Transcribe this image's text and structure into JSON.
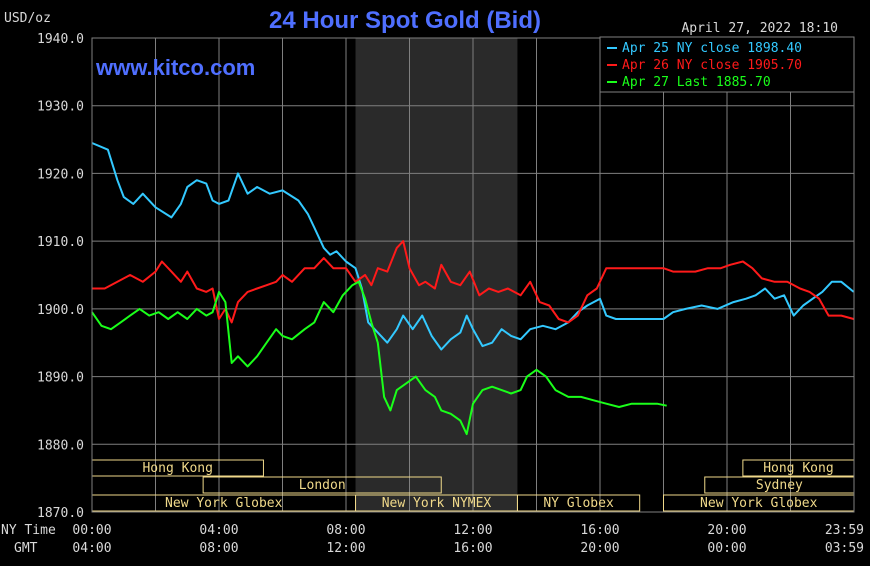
{
  "unit_label": "USD/oz",
  "timestamp": "April 27, 2022 18:10",
  "watermark": "www.kitco.com",
  "axis_row_labels": {
    "ny": "NY Time",
    "gmt": "GMT"
  },
  "colors": {
    "background": "#000000",
    "grid": "#7f7f7f",
    "title": "#4f6fff",
    "text": "#d9d9d9",
    "series_apr25": "#33c9ff",
    "series_apr26": "#ff1a1a",
    "series_apr27": "#1aff1a",
    "market_band": "#f0d98a",
    "shade": "#2a2a2a"
  },
  "chart_data": {
    "type": "line",
    "title": "24 Hour Spot Gold (Bid)",
    "ylabel": "USD/oz",
    "ylim": [
      1870,
      1940
    ],
    "xlim": [
      0,
      24
    ],
    "grid": true,
    "legend_position": "top-right",
    "y_ticks": [
      "1870.0",
      "1880.0",
      "1890.0",
      "1900.0",
      "1910.0",
      "1920.0",
      "1930.0",
      "1940.0"
    ],
    "x_ticks_ny": [
      "00:00",
      "04:00",
      "08:00",
      "12:00",
      "16:00",
      "20:00",
      "23:59"
    ],
    "x_ticks_gmt": [
      "04:00",
      "08:00",
      "12:00",
      "16:00",
      "20:00",
      "00:00",
      "03:59"
    ],
    "legend": [
      {
        "text": "Apr 25 NY close 1898.40",
        "color_key": "series_apr25"
      },
      {
        "text": "Apr 26 NY close 1905.70",
        "color_key": "series_apr26"
      },
      {
        "text": "Apr 27 Last 1885.70",
        "color_key": "series_apr27"
      }
    ],
    "shaded_hours": [
      8.3,
      13.4
    ],
    "market_sessions": [
      {
        "label": "Hong Kong",
        "row": 0,
        "start": 0,
        "end": 5.4
      },
      {
        "label": "Hong Kong",
        "row": 0,
        "start": 20.5,
        "end": 24
      },
      {
        "label": "London",
        "row": 1,
        "start": 3.5,
        "end": 11.0
      },
      {
        "label": "Sydney",
        "row": 1,
        "start": 19.3,
        "end": 24
      },
      {
        "label": "New York Globex",
        "row": 2,
        "start": 0,
        "end": 8.3
      },
      {
        "label": "New York NYMEX",
        "row": 2,
        "start": 8.3,
        "end": 13.4
      },
      {
        "label": "NY Globex",
        "row": 2,
        "start": 13.4,
        "end": 17.25
      },
      {
        "label": "New York Globex",
        "row": 2,
        "start": 18.0,
        "end": 24
      }
    ],
    "series": [
      {
        "name": "Apr 25 NY close 1898.40",
        "color_key": "series_apr25",
        "points": [
          [
            0,
            1924.5
          ],
          [
            0.5,
            1923.5
          ],
          [
            0.8,
            1919
          ],
          [
            1,
            1916.5
          ],
          [
            1.3,
            1915.5
          ],
          [
            1.6,
            1917
          ],
          [
            2,
            1915
          ],
          [
            2.5,
            1913.5
          ],
          [
            2.8,
            1915.5
          ],
          [
            3,
            1918
          ],
          [
            3.3,
            1919
          ],
          [
            3.6,
            1918.5
          ],
          [
            3.8,
            1916
          ],
          [
            4,
            1915.5
          ],
          [
            4.3,
            1916
          ],
          [
            4.6,
            1920
          ],
          [
            4.9,
            1917
          ],
          [
            5.2,
            1918
          ],
          [
            5.6,
            1917
          ],
          [
            6,
            1917.5
          ],
          [
            6.5,
            1916
          ],
          [
            6.8,
            1914
          ],
          [
            7,
            1912
          ],
          [
            7.3,
            1909
          ],
          [
            7.5,
            1908
          ],
          [
            7.7,
            1908.5
          ],
          [
            8,
            1907
          ],
          [
            8.3,
            1906
          ],
          [
            8.5,
            1903
          ],
          [
            8.7,
            1898
          ],
          [
            9,
            1896.5
          ],
          [
            9.3,
            1895
          ],
          [
            9.6,
            1897
          ],
          [
            9.8,
            1899
          ],
          [
            10.1,
            1897
          ],
          [
            10.4,
            1899
          ],
          [
            10.7,
            1896
          ],
          [
            11,
            1894
          ],
          [
            11.3,
            1895.5
          ],
          [
            11.6,
            1896.5
          ],
          [
            11.8,
            1899
          ],
          [
            12,
            1897
          ],
          [
            12.3,
            1894.5
          ],
          [
            12.6,
            1895
          ],
          [
            12.9,
            1897
          ],
          [
            13.2,
            1896
          ],
          [
            13.5,
            1895.5
          ],
          [
            13.8,
            1897
          ],
          [
            14.2,
            1897.5
          ],
          [
            14.6,
            1897
          ],
          [
            15,
            1898
          ],
          [
            15.3,
            1899.5
          ],
          [
            15.6,
            1900.5
          ],
          [
            16,
            1901.5
          ],
          [
            16.2,
            1899
          ],
          [
            16.5,
            1898.5
          ],
          [
            17,
            1898.5
          ],
          [
            17.5,
            1898.5
          ],
          [
            18,
            1898.5
          ],
          [
            18.3,
            1899.5
          ],
          [
            18.7,
            1900
          ],
          [
            19.2,
            1900.5
          ],
          [
            19.7,
            1900
          ],
          [
            20.2,
            1901
          ],
          [
            20.6,
            1901.5
          ],
          [
            20.9,
            1902
          ],
          [
            21.2,
            1903
          ],
          [
            21.5,
            1901.5
          ],
          [
            21.8,
            1902
          ],
          [
            22.1,
            1899
          ],
          [
            22.4,
            1900.5
          ],
          [
            22.7,
            1901.5
          ],
          [
            23,
            1902.5
          ],
          [
            23.3,
            1904
          ],
          [
            23.6,
            1904
          ],
          [
            23.99,
            1902.5
          ]
        ]
      },
      {
        "name": "Apr 26 NY close 1905.70",
        "color_key": "series_apr26",
        "points": [
          [
            0,
            1903
          ],
          [
            0.4,
            1903
          ],
          [
            0.8,
            1904
          ],
          [
            1.2,
            1905
          ],
          [
            1.6,
            1904
          ],
          [
            2,
            1905.5
          ],
          [
            2.2,
            1907
          ],
          [
            2.5,
            1905.5
          ],
          [
            2.8,
            1904
          ],
          [
            3,
            1905.5
          ],
          [
            3.3,
            1903
          ],
          [
            3.6,
            1902.5
          ],
          [
            3.8,
            1903
          ],
          [
            4,
            1898.5
          ],
          [
            4.2,
            1900
          ],
          [
            4.4,
            1898
          ],
          [
            4.6,
            1901
          ],
          [
            4.9,
            1902.5
          ],
          [
            5.2,
            1903
          ],
          [
            5.5,
            1903.5
          ],
          [
            5.8,
            1904
          ],
          [
            6,
            1905
          ],
          [
            6.3,
            1904
          ],
          [
            6.7,
            1906
          ],
          [
            7,
            1906
          ],
          [
            7.3,
            1907.5
          ],
          [
            7.6,
            1906
          ],
          [
            8,
            1906
          ],
          [
            8.3,
            1904
          ],
          [
            8.6,
            1905
          ],
          [
            8.8,
            1903.5
          ],
          [
            9,
            1906
          ],
          [
            9.3,
            1905.5
          ],
          [
            9.6,
            1909
          ],
          [
            9.8,
            1910
          ],
          [
            10,
            1906
          ],
          [
            10.3,
            1903.5
          ],
          [
            10.5,
            1904
          ],
          [
            10.8,
            1903
          ],
          [
            11,
            1906.5
          ],
          [
            11.3,
            1904
          ],
          [
            11.6,
            1903.5
          ],
          [
            11.9,
            1905.5
          ],
          [
            12.2,
            1902
          ],
          [
            12.5,
            1903
          ],
          [
            12.8,
            1902.5
          ],
          [
            13.1,
            1903
          ],
          [
            13.5,
            1902
          ],
          [
            13.8,
            1904
          ],
          [
            14.1,
            1901
          ],
          [
            14.4,
            1900.5
          ],
          [
            14.7,
            1898.5
          ],
          [
            15,
            1898
          ],
          [
            15.3,
            1899
          ],
          [
            15.6,
            1902
          ],
          [
            15.9,
            1903
          ],
          [
            16.2,
            1906
          ],
          [
            16.5,
            1906
          ],
          [
            17,
            1906
          ],
          [
            17.5,
            1906
          ],
          [
            18,
            1906
          ],
          [
            18.3,
            1905.5
          ],
          [
            18.7,
            1905.5
          ],
          [
            19,
            1905.5
          ],
          [
            19.4,
            1906
          ],
          [
            19.8,
            1906
          ],
          [
            20.1,
            1906.5
          ],
          [
            20.5,
            1907
          ],
          [
            20.8,
            1906
          ],
          [
            21.1,
            1904.5
          ],
          [
            21.5,
            1904
          ],
          [
            21.9,
            1904
          ],
          [
            22.3,
            1903
          ],
          [
            22.6,
            1902.5
          ],
          [
            22.9,
            1901.5
          ],
          [
            23.2,
            1899
          ],
          [
            23.6,
            1899
          ],
          [
            23.99,
            1898.5
          ]
        ]
      },
      {
        "name": "Apr 27 Last 1885.70",
        "color_key": "series_apr27",
        "points": [
          [
            0,
            1899.5
          ],
          [
            0.3,
            1897.5
          ],
          [
            0.6,
            1897
          ],
          [
            0.9,
            1898
          ],
          [
            1.2,
            1899
          ],
          [
            1.5,
            1900
          ],
          [
            1.8,
            1899
          ],
          [
            2.1,
            1899.5
          ],
          [
            2.4,
            1898.5
          ],
          [
            2.7,
            1899.5
          ],
          [
            3,
            1898.5
          ],
          [
            3.3,
            1900
          ],
          [
            3.6,
            1899
          ],
          [
            3.8,
            1899.5
          ],
          [
            4,
            1902.5
          ],
          [
            4.2,
            1901
          ],
          [
            4.4,
            1892
          ],
          [
            4.6,
            1893
          ],
          [
            4.9,
            1891.5
          ],
          [
            5.2,
            1893
          ],
          [
            5.5,
            1895
          ],
          [
            5.8,
            1897
          ],
          [
            6,
            1896
          ],
          [
            6.3,
            1895.5
          ],
          [
            6.7,
            1897
          ],
          [
            7,
            1898
          ],
          [
            7.3,
            1901
          ],
          [
            7.6,
            1899.5
          ],
          [
            7.9,
            1902
          ],
          [
            8.2,
            1903.5
          ],
          [
            8.4,
            1904
          ],
          [
            8.6,
            1901.5
          ],
          [
            8.8,
            1898
          ],
          [
            9,
            1895
          ],
          [
            9.2,
            1887
          ],
          [
            9.4,
            1885
          ],
          [
            9.6,
            1888
          ],
          [
            9.9,
            1889
          ],
          [
            10.2,
            1890
          ],
          [
            10.5,
            1888
          ],
          [
            10.8,
            1887
          ],
          [
            11,
            1885
          ],
          [
            11.3,
            1884.5
          ],
          [
            11.6,
            1883.5
          ],
          [
            11.8,
            1881.5
          ],
          [
            12,
            1886
          ],
          [
            12.3,
            1888
          ],
          [
            12.6,
            1888.5
          ],
          [
            12.9,
            1888
          ],
          [
            13.2,
            1887.5
          ],
          [
            13.5,
            1888
          ],
          [
            13.7,
            1890
          ],
          [
            14,
            1891
          ],
          [
            14.3,
            1890
          ],
          [
            14.6,
            1888
          ],
          [
            15,
            1887
          ],
          [
            15.4,
            1887
          ],
          [
            15.8,
            1886.5
          ],
          [
            16.2,
            1886
          ],
          [
            16.6,
            1885.5
          ],
          [
            17,
            1886
          ],
          [
            17.4,
            1886
          ],
          [
            17.8,
            1886
          ],
          [
            18.1,
            1885.7
          ]
        ]
      }
    ]
  }
}
